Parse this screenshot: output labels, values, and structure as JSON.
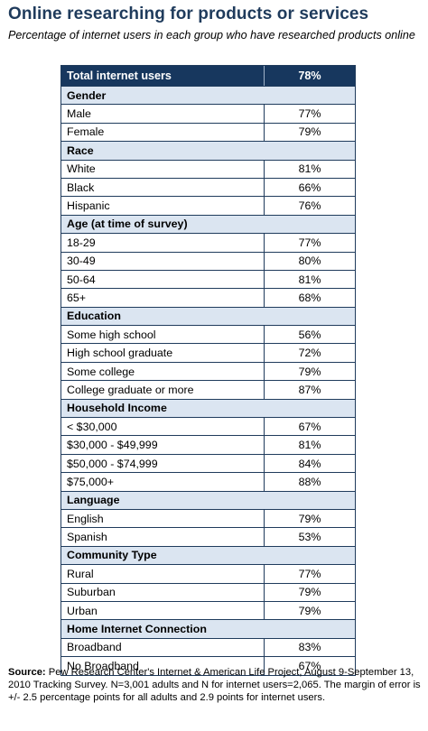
{
  "title": "Online researching for products or services",
  "subtitle": "Percentage of internet users in each group who have researched products online",
  "header": {
    "label": "Total internet users",
    "value": "78%"
  },
  "groups": [
    {
      "name": "Gender",
      "rows": [
        {
          "label": "Male",
          "value": "77%"
        },
        {
          "label": "Female",
          "value": "79%"
        }
      ]
    },
    {
      "name": "Race",
      "rows": [
        {
          "label": "White",
          "value": "81%"
        },
        {
          "label": "Black",
          "value": "66%"
        },
        {
          "label": "Hispanic",
          "value": "76%"
        }
      ]
    },
    {
      "name": "Age (at time of survey)",
      "rows": [
        {
          "label": "18-29",
          "value": "77%"
        },
        {
          "label": "30-49",
          "value": "80%"
        },
        {
          "label": "50-64",
          "value": "81%"
        },
        {
          "label": "65+",
          "value": "68%"
        }
      ]
    },
    {
      "name": "Education",
      "rows": [
        {
          "label": "Some high school",
          "value": "56%"
        },
        {
          "label": "High school graduate",
          "value": "72%"
        },
        {
          "label": "Some college",
          "value": "79%"
        },
        {
          "label": "College graduate or more",
          "value": "87%"
        }
      ]
    },
    {
      "name": "Household Income",
      "rows": [
        {
          "label": "< $30,000",
          "value": "67%"
        },
        {
          "label": "$30,000 - $49,999",
          "value": "81%"
        },
        {
          "label": "$50,000 - $74,999",
          "value": "84%"
        },
        {
          "label": "$75,000+",
          "value": "88%"
        }
      ]
    },
    {
      "name": "Language",
      "rows": [
        {
          "label": "English",
          "value": "79%"
        },
        {
          "label": "Spanish",
          "value": "53%"
        }
      ]
    },
    {
      "name": "Community Type",
      "rows": [
        {
          "label": "Rural",
          "value": "77%"
        },
        {
          "label": "Suburban",
          "value": "79%"
        },
        {
          "label": "Urban",
          "value": "79%"
        }
      ]
    },
    {
      "name": "Home Internet Connection",
      "rows": [
        {
          "label": "Broadband",
          "value": "83%"
        },
        {
          "label": "No Broadband",
          "value": "67%"
        }
      ]
    }
  ],
  "source": {
    "label": "Source:",
    "text": " Pew Research Center's Internet & American Life Project, August 9-September 13, 2010 Tracking Survey. N=3,001 adults and N for internet users=2,065.  The margin of error is +/- 2.5 percentage points for all adults and 2.9 points for internet users."
  },
  "colors": {
    "header_bg": "#17375e",
    "group_bg": "#dbe5f1",
    "title": "#1f3b5c"
  }
}
